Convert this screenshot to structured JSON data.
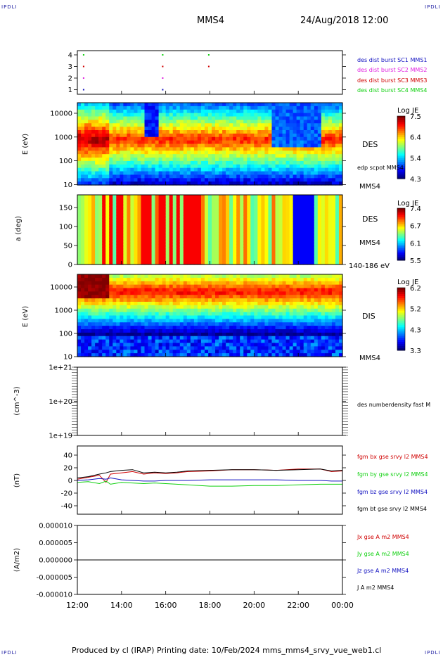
{
  "header": {
    "corner_left": "IPDLI",
    "corner_right": "IPDLI",
    "spacecraft": "MMS4",
    "datetime": "24/Aug/2018 12:00"
  },
  "footer": {
    "text": "Produced by cl (IRAP)   Printing date: 10/Feb/2024   mms_mms4_srvy_vue_web1.cl",
    "corner_left": "IPDLI",
    "corner_right": "IPDLI"
  },
  "time_axis": {
    "ticks": [
      "12:00",
      "14:00",
      "16:00",
      "18:00",
      "20:00",
      "22:00",
      "00:00"
    ]
  },
  "colors": {
    "red": "#d00000",
    "magenta": "#e020e0",
    "green": "#10d010",
    "blue": "#1010c0",
    "black": "#000000"
  },
  "chart_data": [
    {
      "type": "scatter",
      "panel": "burst-availability",
      "yticks": [
        "4",
        "3",
        "2",
        "1"
      ],
      "series": [
        {
          "name": "des dist burst SC1 MMS1",
          "color": "#1010c0",
          "y": 1,
          "x": [
            "12:15",
            "15:50"
          ]
        },
        {
          "name": "des dist burst SC2 MMS2",
          "color": "#e020e0",
          "y": 2,
          "x": [
            "12:15",
            "15:50"
          ]
        },
        {
          "name": "des dist burst SC3 MMS3",
          "color": "#d00000",
          "y": 3,
          "x": [
            "12:15",
            "15:50",
            "17:55"
          ]
        },
        {
          "name": "des dist burst SC4 MMS4",
          "color": "#10d010",
          "y": 4,
          "x": [
            "12:15",
            "15:50",
            "17:55"
          ]
        }
      ]
    },
    {
      "type": "heatmap",
      "panel": "des-energy-spectrogram",
      "ylabel": "E (eV)",
      "yticks": [
        "10000",
        "1000",
        "100",
        "10"
      ],
      "label": "DES",
      "sublabel": "edp scpot MMS4",
      "bottom_label": "MMS4",
      "colorbar": {
        "title": "Log JE",
        "ticks": [
          "7.5",
          "6.4",
          "5.4",
          "4.3"
        ]
      }
    },
    {
      "type": "heatmap",
      "panel": "des-pitch-angle",
      "ylabel": "a (deg)",
      "yticks": [
        "150",
        "100",
        "50",
        "0"
      ],
      "label": "DES",
      "sublabel": "MMS4",
      "bottom_label": "140-186 eV",
      "colorbar": {
        "title": "Log JE",
        "ticks": [
          "7.4",
          "6.7",
          "6.1",
          "5.5"
        ]
      }
    },
    {
      "type": "heatmap",
      "panel": "dis-energy-spectrogram",
      "ylabel": "E (eV)",
      "yticks": [
        "10000",
        "1000",
        "100",
        "10"
      ],
      "label": "DIS",
      "bottom_label": "MMS4",
      "colorbar": {
        "title": "Log JE",
        "ticks": [
          "6.2",
          "5.2",
          "4.3",
          "3.3"
        ]
      }
    },
    {
      "type": "line",
      "panel": "number-density",
      "ylabel": "(cm^-3)",
      "yticks": [
        "1e+21",
        "1e+20",
        "1e+19"
      ],
      "series": [
        {
          "name": "des numberdensity fast M",
          "color": "#000000",
          "x": [],
          "y": []
        }
      ]
    },
    {
      "type": "line",
      "panel": "magnetic-field",
      "ylabel": "(nT)",
      "yticks": [
        "40",
        "20",
        "0",
        "-20",
        "-40"
      ],
      "ylim": [
        -50,
        50
      ],
      "x_hours": [
        12.0,
        12.5,
        13.0,
        13.3,
        13.5,
        14.0,
        14.5,
        15.0,
        15.5,
        16.0,
        16.5,
        17.0,
        18.0,
        19.0,
        20.0,
        21.0,
        22.0,
        23.0,
        23.5,
        24.0
      ],
      "series": [
        {
          "name": "fgm bx gse srvy l2 MMS4",
          "color": "#d00000",
          "y": [
            2,
            5,
            8,
            -3,
            10,
            12,
            14,
            10,
            12,
            11,
            12,
            14,
            15,
            17,
            17,
            16,
            18,
            18,
            14,
            15
          ]
        },
        {
          "name": "fgm by gse srvy l2 MMS4",
          "color": "#10d010",
          "y": [
            -3,
            -2,
            -5,
            -1,
            -6,
            -3,
            -4,
            -5,
            -4,
            -5,
            -6,
            -7,
            -9,
            -9,
            -8,
            -8,
            -7,
            -6,
            -6,
            -6
          ]
        },
        {
          "name": "fgm bz gse srvy l2 MMS4",
          "color": "#1010c0",
          "y": [
            0,
            1,
            3,
            2,
            4,
            1,
            0,
            -1,
            -1,
            0,
            0,
            0,
            1,
            1,
            1,
            1,
            0,
            0,
            -1,
            -1
          ]
        },
        {
          "name": "fgm bt gse srvy l2 MMS4",
          "color": "#000000",
          "y": [
            4,
            6,
            10,
            12,
            14,
            16,
            17,
            12,
            13,
            12,
            13,
            15,
            16,
            17,
            17,
            16,
            17,
            18,
            15,
            16
          ]
        }
      ]
    },
    {
      "type": "line",
      "panel": "current-density",
      "ylabel": "(A/m2)",
      "yticks": [
        "0.000010",
        "0.000005",
        "0.000000",
        "-0.000005",
        "-0.000010"
      ],
      "ylim": [
        -1e-05,
        1e-05
      ],
      "series": [
        {
          "name": "Jx gse A m2 MMS4",
          "color": "#d00000"
        },
        {
          "name": "Jy gse A m2 MMS4",
          "color": "#10d010"
        },
        {
          "name": "Jz gse A m2 MMS4",
          "color": "#1010c0"
        },
        {
          "name": "J A m2 MMS4",
          "color": "#000000",
          "x_hours": [
            12,
            24
          ],
          "y": [
            0,
            0
          ]
        }
      ]
    }
  ]
}
